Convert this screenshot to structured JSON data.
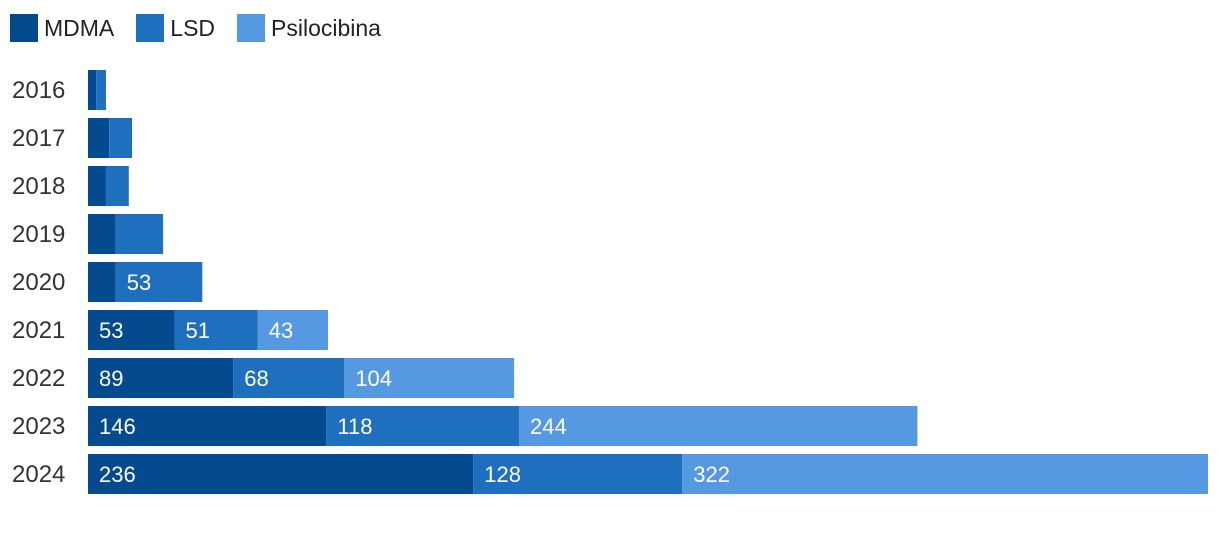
{
  "chart_data": {
    "type": "bar",
    "orientation": "horizontal",
    "stacked": true,
    "categories": [
      "2016",
      "2017",
      "2018",
      "2019",
      "2020",
      "2021",
      "2022",
      "2023",
      "2024"
    ],
    "series": [
      {
        "name": "MDMA",
        "color": "#034a8e",
        "values": [
          5,
          13,
          11,
          17,
          17,
          53,
          89,
          146,
          236
        ],
        "labels": [
          "",
          "",
          "",
          "",
          "",
          "53",
          "89",
          "146",
          "236"
        ]
      },
      {
        "name": "LSD",
        "color": "#1f6fbf",
        "values": [
          6,
          14,
          14,
          29,
          53,
          51,
          68,
          118,
          128
        ],
        "labels": [
          "",
          "",
          "",
          "",
          "53",
          "51",
          "68",
          "118",
          "128"
        ]
      },
      {
        "name": "Psilocibina",
        "color": "#5599e3",
        "values": [
          0,
          0,
          0,
          0,
          0,
          43,
          104,
          244,
          322
        ],
        "labels": [
          "",
          "",
          "",
          "",
          "",
          "43",
          "104",
          "244",
          "322"
        ]
      }
    ],
    "legend_position": "top-left",
    "grid": false,
    "xlim": [
      0,
      686
    ]
  }
}
